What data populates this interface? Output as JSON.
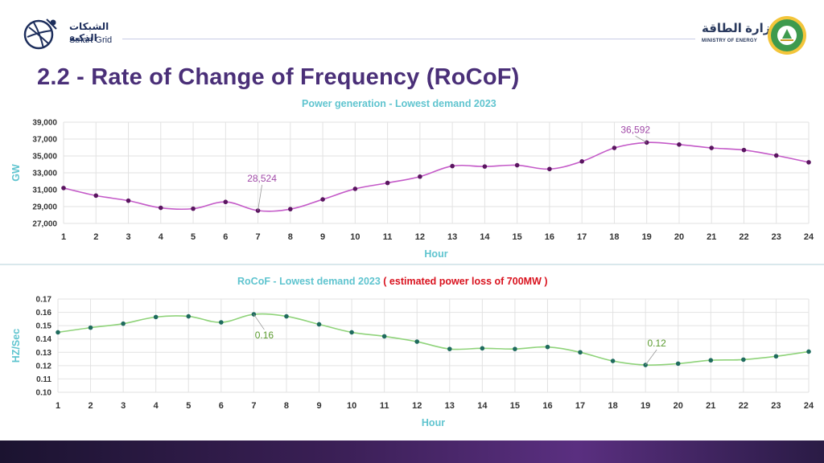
{
  "header": {
    "left_logo_arabic": "الشبكات الذكية",
    "left_logo_english": "Smart Grid",
    "right_logo_arabic": "وزارة الطاقة",
    "right_logo_english": "MINISTRY OF ENERGY"
  },
  "page_title": "2.2 - Rate of Change of Frequency (RoCoF)",
  "colors": {
    "title": "#4a2f78",
    "chart_title": "#5fc4cf",
    "warning": "#d9121e",
    "power_line": "#c45ac8",
    "power_marker": "#5a1560",
    "power_label": "#a14aa8",
    "rocof_line": "#8fd37a",
    "rocof_marker": "#1f6b5e",
    "rocof_label": "#5a9a2e",
    "grid": "#e2e2e2"
  },
  "charts": {
    "power": {
      "title": "Power generation - Lowest demand 2023"
    },
    "rocof": {
      "title": "RoCoF - Lowest demand 2023",
      "title_warning": "( estimated power loss of 700MW )"
    }
  },
  "chart_data": [
    {
      "type": "line",
      "title": "Power generation - Lowest demand 2023",
      "xlabel": "Hour",
      "ylabel": "GW",
      "x": [
        1,
        2,
        3,
        4,
        5,
        6,
        7,
        8,
        9,
        10,
        11,
        12,
        13,
        14,
        15,
        16,
        17,
        18,
        19,
        20,
        21,
        22,
        23,
        24
      ],
      "y_ticks": [
        "27,000",
        "29,000",
        "31,000",
        "33,000",
        "35,000",
        "37,000",
        "39,000"
      ],
      "ylim": [
        27000,
        39000
      ],
      "grid": true,
      "series": [
        {
          "values": [
            31200,
            30300,
            29700,
            28850,
            28750,
            29550,
            28524,
            28700,
            29850,
            31100,
            31800,
            32550,
            33800,
            33750,
            33900,
            33450,
            34350,
            35950,
            36592,
            36350,
            35950,
            35700,
            35050,
            34250
          ]
        }
      ],
      "annotations": [
        {
          "x": 7,
          "label": "28,524"
        },
        {
          "x": 19,
          "label": "36,592"
        }
      ]
    },
    {
      "type": "line",
      "title": "RoCoF - Lowest demand 2023 ( estimated power loss of 700MW )",
      "xlabel": "Hour",
      "ylabel": "HZ/Sec",
      "x": [
        1,
        2,
        3,
        4,
        5,
        6,
        7,
        8,
        9,
        10,
        11,
        12,
        13,
        14,
        15,
        16,
        17,
        18,
        19,
        20,
        21,
        22,
        23,
        24
      ],
      "y_ticks": [
        "0.10",
        "0.11",
        "0.12",
        "0.13",
        "0.14",
        "0.15",
        "0.16",
        "0.17"
      ],
      "ylim": [
        0.1,
        0.17
      ],
      "grid": true,
      "series": [
        {
          "values": [
            0.145,
            0.1485,
            0.1515,
            0.1565,
            0.157,
            0.1525,
            0.1585,
            0.157,
            0.151,
            0.145,
            0.142,
            0.138,
            0.1325,
            0.133,
            0.1325,
            0.134,
            0.13,
            0.1235,
            0.1205,
            0.1215,
            0.124,
            0.1245,
            0.127,
            0.1305
          ]
        }
      ],
      "annotations": [
        {
          "x": 7,
          "label": "0.16"
        },
        {
          "x": 19,
          "label": "0.12"
        }
      ]
    }
  ]
}
